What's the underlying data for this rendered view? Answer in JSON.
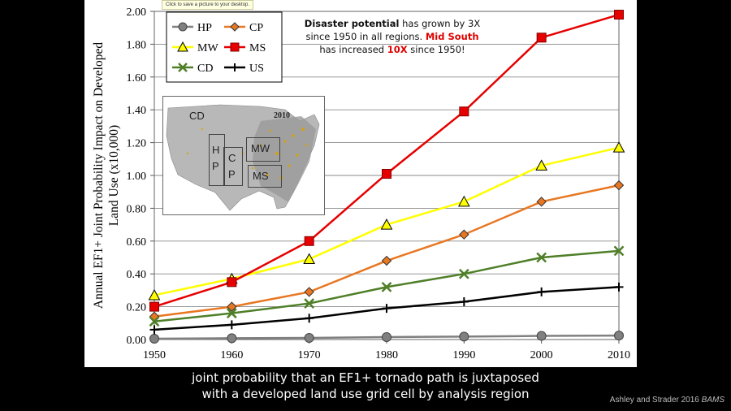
{
  "tooltip": "Click to save a picture to your desktop.",
  "chart_data": {
    "type": "line",
    "x": [
      1950,
      1960,
      1970,
      1980,
      1990,
      2000,
      2010
    ],
    "series": [
      {
        "name": "HP",
        "color": "#808080",
        "marker": "circle",
        "values": [
          0.005,
          0.008,
          0.01,
          0.015,
          0.018,
          0.022,
          0.024
        ]
      },
      {
        "name": "CP",
        "color": "#e87722",
        "marker": "diamond",
        "values": [
          0.14,
          0.2,
          0.29,
          0.48,
          0.64,
          0.84,
          0.94
        ]
      },
      {
        "name": "MW",
        "color": "#ffff00",
        "marker": "triangle",
        "values": [
          0.27,
          0.37,
          0.49,
          0.7,
          0.84,
          1.06,
          1.17
        ]
      },
      {
        "name": "MS",
        "color": "#e60000",
        "marker": "square",
        "values": [
          0.2,
          0.35,
          0.6,
          1.01,
          1.39,
          1.84,
          1.98
        ]
      },
      {
        "name": "CD",
        "color": "#4f7f28",
        "marker": "x",
        "values": [
          0.11,
          0.16,
          0.22,
          0.32,
          0.4,
          0.5,
          0.54
        ]
      },
      {
        "name": "US",
        "color": "#000000",
        "marker": "plus",
        "values": [
          0.06,
          0.09,
          0.13,
          0.19,
          0.23,
          0.29,
          0.32
        ]
      }
    ],
    "xlabel": "",
    "ylabel": "Annual EF1+ Joint Probability Impact on Developed Land Use (x10,000)",
    "ylim": [
      0,
      2.0
    ],
    "xlim": [
      1950,
      2010
    ],
    "y_ticks": [
      "0.00",
      "0.20",
      "0.40",
      "0.60",
      "0.80",
      "1.00",
      "1.20",
      "1.40",
      "1.60",
      "1.80",
      "2.00"
    ],
    "x_ticks": [
      "1950",
      "1960",
      "1970",
      "1980",
      "1990",
      "2000",
      "2010"
    ],
    "grid": "horizontal",
    "legend_placement": "top-left"
  },
  "annotation": {
    "line1_bold": "Disaster potential",
    "line1_rest": " has grown by 3X",
    "line2_rest": "since 1950 in all regions. ",
    "line2_red": "Mid South",
    "line3_rest": "has increased ",
    "line3_red": "10X",
    "line3_end": " since 1950!"
  },
  "map": {
    "year": "2010",
    "labels": [
      "CD",
      "H",
      "P",
      "C",
      "P",
      "MW",
      "MS"
    ]
  },
  "caption": {
    "line1": "joint probability that an EF1+ tornado path is juxtaposed",
    "line2": "with a developed land use grid cell by analysis region"
  },
  "source": {
    "text": "Ashley and Strader 2016 ",
    "journal": "BAMS"
  }
}
